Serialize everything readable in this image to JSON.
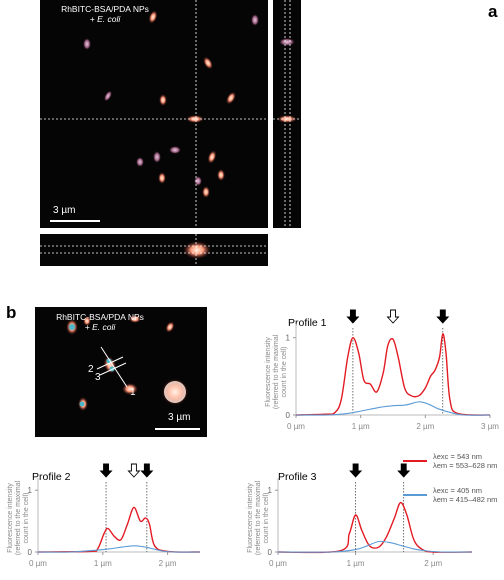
{
  "panel_a": {
    "letter": "a",
    "label_line1": "RhBITC-BSA/PDA NPs",
    "label_line2": "+ E. coli",
    "scale_text": "3 µm"
  },
  "panel_b": {
    "letter": "b",
    "label_line1": "RhBITC-BSA/PDA NPs",
    "label_line2": "+ E. coli",
    "scale_text": "3 µm",
    "profile_markers": [
      "1",
      "2",
      "3"
    ]
  },
  "axis": {
    "ylabel_line1": "Fluorescence intensity",
    "ylabel_line2": "(referred to the maximal",
    "ylabel_line3": "count in the cell)"
  },
  "legend": {
    "red_exc": "λexc = 543 nm",
    "red_em": "λem = 553–628 nm",
    "blue_exc": "λexc = 405 nm",
    "blue_em": "λem = 415–482 nm",
    "red_color": "#e31b23",
    "blue_color": "#5b9bd5"
  },
  "chart_data": [
    {
      "type": "line",
      "title": "Profile 1",
      "x_ticks": [
        "0 µm",
        "1 µm",
        "2 µm",
        "3 µm"
      ],
      "y_ticks": [
        "0",
        "1"
      ],
      "xlim": [
        0,
        3
      ],
      "ylim": [
        0,
        1.1
      ],
      "series": [
        {
          "color": "#e31b23",
          "x": [
            0,
            0.45,
            0.6,
            0.7,
            0.8,
            0.88,
            0.97,
            1.05,
            1.15,
            1.25,
            1.35,
            1.42,
            1.5,
            1.58,
            1.68,
            1.78,
            1.9,
            2.0,
            2.08,
            2.15,
            2.22,
            2.27,
            2.32,
            2.38,
            2.5,
            3.0
          ],
          "y": [
            0.0,
            0.01,
            0.03,
            0.2,
            0.75,
            1.0,
            0.8,
            0.45,
            0.4,
            0.3,
            0.55,
            0.9,
            0.98,
            0.75,
            0.35,
            0.25,
            0.25,
            0.35,
            0.5,
            0.58,
            0.75,
            1.05,
            0.8,
            0.2,
            0.02,
            0.0
          ]
        },
        {
          "color": "#5b9bd5",
          "x": [
            0,
            0.5,
            0.8,
            1.0,
            1.3,
            1.5,
            1.7,
            1.9,
            2.05,
            2.2,
            2.4,
            2.6,
            3.0
          ],
          "y": [
            0.0,
            0.0,
            0.02,
            0.05,
            0.1,
            0.12,
            0.13,
            0.17,
            0.14,
            0.08,
            0.03,
            0.0,
            0.0
          ]
        }
      ],
      "solid_markers_x": [
        0.88,
        2.27
      ],
      "hollow_markers_x": [
        1.5
      ]
    },
    {
      "type": "line",
      "title": "Profile 2",
      "x_ticks": [
        "0 µm",
        "1 µm",
        "2 µm"
      ],
      "y_ticks": [
        "0",
        "1"
      ],
      "xlim": [
        0,
        2.5
      ],
      "ylim": [
        0,
        1.1
      ],
      "series": [
        {
          "color": "#e31b23",
          "x": [
            0,
            0.8,
            0.92,
            1.02,
            1.08,
            1.18,
            1.28,
            1.38,
            1.48,
            1.58,
            1.66,
            1.72,
            1.8,
            2.0,
            2.5
          ],
          "y": [
            0.0,
            0.01,
            0.05,
            0.3,
            0.38,
            0.25,
            0.2,
            0.45,
            0.72,
            0.5,
            0.55,
            0.45,
            0.1,
            0.01,
            0.0
          ]
        },
        {
          "color": "#5b9bd5",
          "x": [
            0,
            0.5,
            0.9,
            1.1,
            1.3,
            1.5,
            1.7,
            1.9,
            2.1,
            2.5
          ],
          "y": [
            0.0,
            0.0,
            0.03,
            0.05,
            0.08,
            0.1,
            0.07,
            0.02,
            0.0,
            0.0
          ]
        }
      ],
      "solid_markers_x": [
        1.05,
        1.68
      ],
      "hollow_markers_x": [
        1.48
      ]
    },
    {
      "type": "line",
      "title": "Profile 3",
      "x_ticks": [
        "0 µm",
        "1 µm",
        "2 µm"
      ],
      "y_ticks": [
        "0",
        "1"
      ],
      "xlim": [
        0,
        2.5
      ],
      "ylim": [
        0,
        1.1
      ],
      "series": [
        {
          "color": "#e31b23",
          "x": [
            0,
            0.8,
            0.92,
            1.0,
            1.08,
            1.18,
            1.3,
            1.4,
            1.5,
            1.58,
            1.66,
            1.75,
            1.85,
            2.0,
            2.5
          ],
          "y": [
            0.0,
            0.02,
            0.3,
            0.6,
            0.35,
            0.1,
            0.08,
            0.25,
            0.55,
            0.8,
            0.6,
            0.2,
            0.05,
            0.0,
            0.0
          ]
        },
        {
          "color": "#5b9bd5",
          "x": [
            0,
            0.7,
            1.0,
            1.15,
            1.3,
            1.45,
            1.6,
            1.75,
            1.9,
            2.1,
            2.5
          ],
          "y": [
            0.0,
            0.0,
            0.04,
            0.1,
            0.17,
            0.15,
            0.1,
            0.05,
            0.02,
            0.0,
            0.0
          ]
        }
      ],
      "solid_markers_x": [
        1.0,
        1.62
      ],
      "hollow_markers_x": []
    }
  ]
}
